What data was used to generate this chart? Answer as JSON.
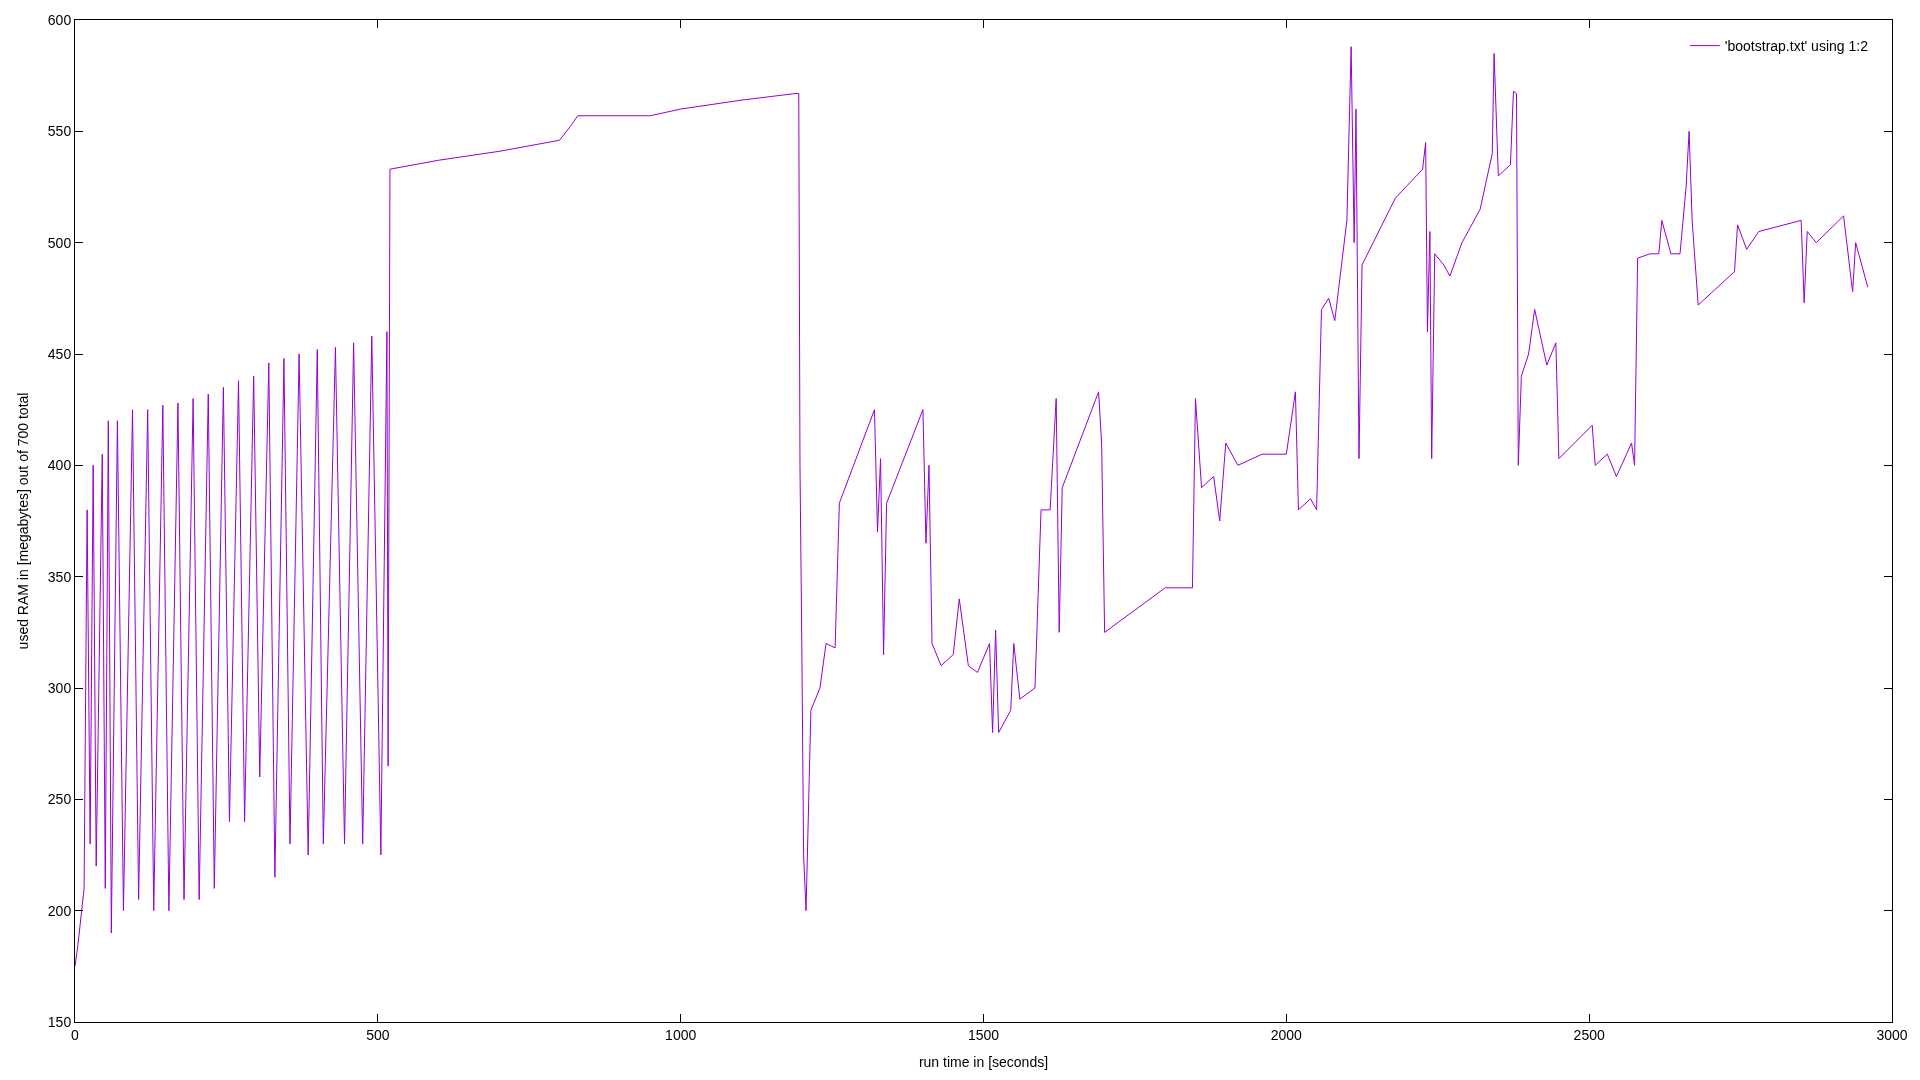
{
  "chart_data": {
    "type": "line",
    "xlabel": "run time in [seconds]",
    "ylabel": "used RAM in [megabytes] out of 700 total",
    "xlim": [
      0,
      3000
    ],
    "xticks": [
      0,
      500,
      1000,
      1500,
      2000,
      2500,
      3000
    ],
    "ylim": [
      150,
      600
    ],
    "yticks": [
      150,
      200,
      250,
      300,
      350,
      400,
      450,
      500,
      550,
      600
    ],
    "legend": "top right",
    "marker": "none",
    "line_style": "solid",
    "series": [
      {
        "name": "'bootstrap.txt' using 1:2",
        "color": "#9400d3",
        "x": [
          0,
          5,
          15,
          20,
          25,
          30,
          35,
          45,
          50,
          55,
          60,
          70,
          80,
          95,
          105,
          120,
          130,
          145,
          155,
          170,
          180,
          195,
          205,
          220,
          230,
          245,
          255,
          270,
          280,
          295,
          305,
          320,
          330,
          345,
          355,
          370,
          385,
          400,
          410,
          430,
          445,
          460,
          475,
          490,
          505,
          515,
          517,
          520,
          600,
          700,
          800,
          820,
          830,
          950,
          1000,
          1100,
          1190,
          1195,
          1197,
          1200,
          1203,
          1207,
          1215,
          1230,
          1240,
          1255,
          1262,
          1320,
          1325,
          1330,
          1335,
          1340,
          1400,
          1405,
          1410,
          1415,
          1430,
          1450,
          1460,
          1475,
          1490,
          1510,
          1515,
          1520,
          1525,
          1545,
          1550,
          1560,
          1585,
          1595,
          1610,
          1620,
          1625,
          1630,
          1690,
          1695,
          1700,
          1750,
          1800,
          1845,
          1850,
          1860,
          1880,
          1890,
          1900,
          1920,
          1960,
          2000,
          2015,
          2020,
          2040,
          2050,
          2058,
          2070,
          2080,
          2100,
          2107,
          2112,
          2115,
          2120,
          2125,
          2180,
          2225,
          2230,
          2233,
          2237,
          2240,
          2245,
          2260,
          2270,
          2290,
          2300,
          2320,
          2340,
          2343,
          2350,
          2370,
          2375,
          2380,
          2383,
          2388,
          2400,
          2410,
          2430,
          2445,
          2450,
          2505,
          2510,
          2530,
          2545,
          2570,
          2575,
          2580,
          2600,
          2615,
          2620,
          2635,
          2650,
          2660,
          2665,
          2670,
          2680,
          2740,
          2745,
          2760,
          2780,
          2850,
          2855,
          2860,
          2875,
          2920,
          2935,
          2940,
          2960
        ],
        "values": [
          175,
          185,
          210,
          380,
          230,
          400,
          220,
          405,
          210,
          420,
          190,
          420,
          200,
          425,
          205,
          425,
          200,
          427,
          200,
          428,
          205,
          430,
          205,
          432,
          210,
          435,
          240,
          438,
          240,
          440,
          260,
          446,
          215,
          448,
          230,
          450,
          225,
          452,
          230,
          453,
          230,
          455,
          230,
          458,
          225,
          460,
          265,
          533,
          537,
          541,
          546,
          553,
          557,
          557,
          560,
          564,
          567,
          567,
          400,
          320,
          225,
          200,
          290,
          300,
          320,
          318,
          383,
          425,
          370,
          403,
          315,
          383,
          425,
          365,
          400,
          320,
          310,
          315,
          340,
          310,
          307,
          320,
          280,
          326,
          280,
          290,
          320,
          295,
          300,
          380,
          380,
          430,
          325,
          390,
          433,
          410,
          325,
          335,
          345,
          345,
          430,
          390,
          395,
          375,
          410,
          400,
          405,
          405,
          433,
          380,
          385,
          380,
          470,
          475,
          465,
          510,
          588,
          500,
          560,
          403,
          490,
          520,
          533,
          545,
          460,
          505,
          403,
          495,
          490,
          485,
          500,
          505,
          515,
          540,
          585,
          530,
          535,
          568,
          567,
          400,
          440,
          450,
          470,
          445,
          455,
          403,
          418,
          400,
          405,
          395,
          410,
          400,
          493,
          495,
          495,
          510,
          495,
          495,
          525,
          550,
          510,
          472,
          487,
          508,
          497,
          505,
          510,
          473,
          505,
          500,
          512,
          478,
          500,
          480
        ]
      }
    ]
  }
}
